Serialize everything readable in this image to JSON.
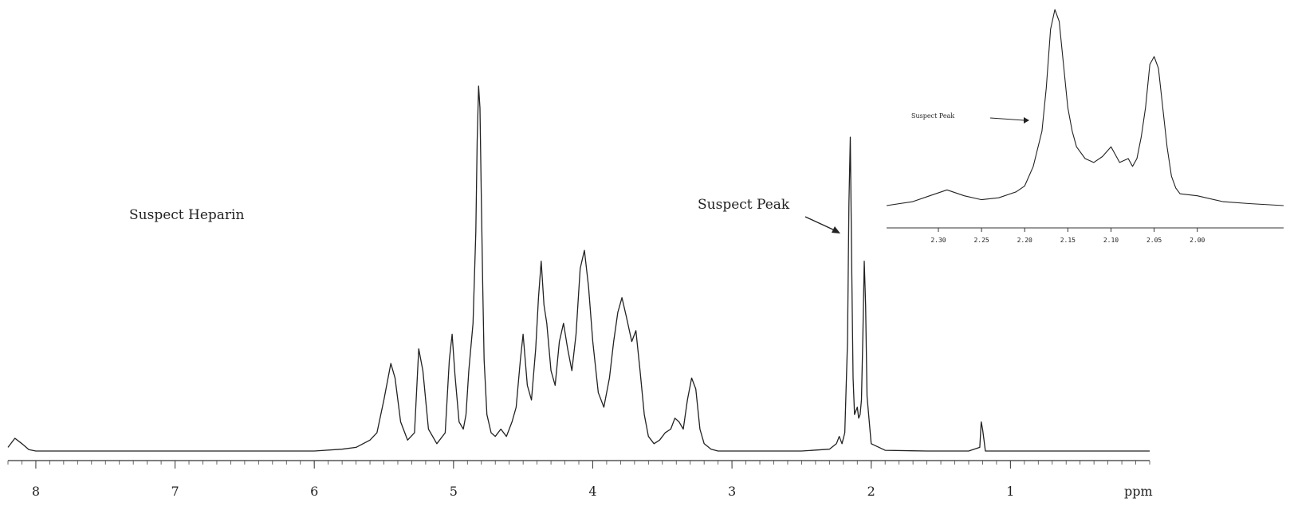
{
  "chart_data": [
    {
      "type": "line",
      "title": "",
      "xlabel": "ppm",
      "ylabel": "",
      "x_reversed": true,
      "xlim": [
        0,
        8.2
      ],
      "ylim": [
        0,
        1
      ],
      "grid": false,
      "x_ticks": [
        {
          "value": 8,
          "label": "8"
        },
        {
          "value": 7,
          "label": "7"
        },
        {
          "value": 6,
          "label": "6"
        },
        {
          "value": 5,
          "label": "5"
        },
        {
          "value": 4,
          "label": "4"
        },
        {
          "value": 3,
          "label": "3"
        },
        {
          "value": 2,
          "label": "2"
        },
        {
          "value": 1,
          "label": "1"
        }
      ],
      "annotations": [
        "Suspect Heparin",
        "Suspect Peak"
      ],
      "series": [
        {
          "x": [
            8.2,
            8.15,
            8.1,
            8.05,
            8.0,
            7.5,
            7.0,
            6.5,
            6.0,
            5.8,
            5.7,
            5.6,
            5.55,
            5.5,
            5.45,
            5.42,
            5.38,
            5.33,
            5.28,
            5.25,
            5.22,
            5.18,
            5.12,
            5.06,
            5.03,
            5.01,
            4.99,
            4.96,
            4.93,
            4.91,
            4.89,
            4.86,
            4.84,
            4.83,
            4.82,
            4.81,
            4.8,
            4.79,
            4.78,
            4.76,
            4.73,
            4.7,
            4.66,
            4.62,
            4.58,
            4.55,
            4.52,
            4.5,
            4.47,
            4.44,
            4.41,
            4.39,
            4.37,
            4.35,
            4.33,
            4.3,
            4.27,
            4.24,
            4.21,
            4.18,
            4.15,
            4.12,
            4.09,
            4.06,
            4.03,
            4.0,
            3.96,
            3.92,
            3.88,
            3.85,
            3.82,
            3.79,
            3.76,
            3.72,
            3.69,
            3.66,
            3.63,
            3.6,
            3.56,
            3.52,
            3.48,
            3.44,
            3.41,
            3.38,
            3.35,
            3.32,
            3.29,
            3.26,
            3.23,
            3.2,
            3.15,
            3.1,
            2.9,
            2.5,
            2.3,
            2.25,
            2.23,
            2.21,
            2.19,
            2.17,
            2.16,
            2.15,
            2.14,
            2.13,
            2.12,
            2.11,
            2.1,
            2.09,
            2.08,
            2.07,
            2.06,
            2.05,
            2.04,
            2.03,
            2.0,
            1.9,
            1.6,
            1.3,
            1.22,
            1.21,
            1.2,
            1.19,
            1.18,
            1.1,
            0.8,
            0.4,
            0.1,
            0.0
          ],
          "y": [
            0.01,
            0.035,
            0.02,
            0.004,
            0.0,
            0.0,
            0.0,
            0.0,
            0.0,
            0.005,
            0.01,
            0.03,
            0.05,
            0.14,
            0.24,
            0.2,
            0.08,
            0.03,
            0.05,
            0.28,
            0.22,
            0.06,
            0.02,
            0.05,
            0.25,
            0.32,
            0.21,
            0.08,
            0.06,
            0.1,
            0.22,
            0.35,
            0.6,
            0.85,
            1.0,
            0.94,
            0.68,
            0.45,
            0.25,
            0.1,
            0.05,
            0.04,
            0.06,
            0.04,
            0.08,
            0.12,
            0.25,
            0.32,
            0.18,
            0.14,
            0.28,
            0.42,
            0.52,
            0.4,
            0.35,
            0.22,
            0.18,
            0.3,
            0.35,
            0.28,
            0.22,
            0.32,
            0.5,
            0.55,
            0.45,
            0.3,
            0.16,
            0.12,
            0.2,
            0.3,
            0.38,
            0.42,
            0.37,
            0.3,
            0.33,
            0.22,
            0.1,
            0.04,
            0.02,
            0.03,
            0.05,
            0.06,
            0.09,
            0.08,
            0.06,
            0.14,
            0.2,
            0.17,
            0.06,
            0.02,
            0.005,
            0.0,
            0.0,
            0.0,
            0.005,
            0.02,
            0.04,
            0.02,
            0.05,
            0.3,
            0.68,
            0.86,
            0.5,
            0.2,
            0.1,
            0.11,
            0.12,
            0.09,
            0.1,
            0.14,
            0.32,
            0.52,
            0.4,
            0.15,
            0.02,
            0.002,
            0.0,
            0.0,
            0.01,
            0.08,
            0.06,
            0.03,
            0.0,
            0.0,
            0.0,
            0.0,
            0.0,
            0.0
          ]
        }
      ]
    },
    {
      "type": "line",
      "title": "",
      "xlabel": "",
      "ylabel": "",
      "x_reversed": true,
      "xlim": [
        1.9,
        2.36
      ],
      "ylim": [
        0,
        1
      ],
      "grid": false,
      "x_ticks": [
        {
          "value": 2.3,
          "label": "2.30"
        },
        {
          "value": 2.25,
          "label": "2.25"
        },
        {
          "value": 2.2,
          "label": "2.20"
        },
        {
          "value": 2.15,
          "label": "2.15"
        },
        {
          "value": 2.1,
          "label": "2.10"
        },
        {
          "value": 2.05,
          "label": "2.05"
        },
        {
          "value": 2.0,
          "label": "2.00"
        }
      ],
      "annotations": [
        "Suspect Peak"
      ],
      "series": [
        {
          "x": [
            2.36,
            2.33,
            2.31,
            2.29,
            2.27,
            2.25,
            2.23,
            2.21,
            2.2,
            2.19,
            2.18,
            2.175,
            2.17,
            2.165,
            2.16,
            2.155,
            2.15,
            2.145,
            2.14,
            2.13,
            2.12,
            2.11,
            2.1,
            2.095,
            2.09,
            2.08,
            2.075,
            2.07,
            2.065,
            2.06,
            2.055,
            2.05,
            2.045,
            2.04,
            2.035,
            2.03,
            2.025,
            2.02,
            2.0,
            1.97,
            1.94,
            1.9
          ],
          "y": [
            0.0,
            0.02,
            0.05,
            0.08,
            0.05,
            0.03,
            0.04,
            0.07,
            0.1,
            0.2,
            0.38,
            0.6,
            0.9,
            1.0,
            0.94,
            0.72,
            0.5,
            0.38,
            0.3,
            0.24,
            0.22,
            0.25,
            0.3,
            0.26,
            0.22,
            0.24,
            0.2,
            0.24,
            0.35,
            0.5,
            0.72,
            0.76,
            0.7,
            0.5,
            0.3,
            0.15,
            0.09,
            0.06,
            0.05,
            0.02,
            0.01,
            0.0
          ]
        }
      ]
    }
  ],
  "labels": {
    "main_annotation": "Suspect Heparin",
    "main_peak": "Suspect Peak",
    "axis_unit": "ppm",
    "inset_peak": "Suspect Peak"
  }
}
